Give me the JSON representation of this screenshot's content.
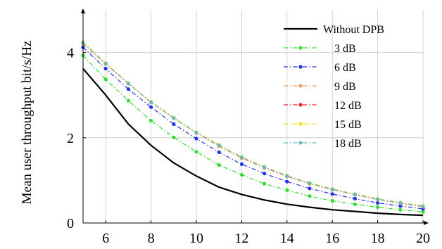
{
  "chart_data": {
    "type": "line",
    "title": "",
    "xlabel": "",
    "ylabel": "Mean user throughput bit/s/Hz",
    "xlim": [
      5,
      20
    ],
    "ylim": [
      0,
      5
    ],
    "x_ticks": [
      6,
      8,
      10,
      12,
      14,
      16,
      18,
      20
    ],
    "y_ticks": [
      0,
      2,
      4
    ],
    "grid": true,
    "legend_position": "top-right",
    "x": [
      5,
      6,
      7,
      8,
      9,
      10,
      11,
      12,
      13,
      14,
      15,
      16,
      17,
      18,
      19,
      20
    ],
    "series": [
      {
        "name": "Without DPB",
        "color": "#000000",
        "style": "solid",
        "markers": false,
        "values": [
          3.62,
          3.0,
          2.32,
          1.82,
          1.41,
          1.1,
          0.84,
          0.67,
          0.54,
          0.44,
          0.37,
          0.31,
          0.27,
          0.23,
          0.2,
          0.18
        ]
      },
      {
        "name": "3 dB",
        "color": "#33dd33",
        "style": "dashdot",
        "markers": true,
        "values": [
          3.93,
          3.37,
          2.87,
          2.4,
          2.01,
          1.67,
          1.36,
          1.13,
          0.92,
          0.77,
          0.63,
          0.52,
          0.44,
          0.37,
          0.31,
          0.26
        ]
      },
      {
        "name": "6 dB",
        "color": "#2233ee",
        "style": "dashdot",
        "markers": true,
        "values": [
          4.12,
          3.62,
          3.14,
          2.72,
          2.32,
          1.98,
          1.66,
          1.38,
          1.16,
          0.97,
          0.81,
          0.68,
          0.57,
          0.47,
          0.4,
          0.33
        ]
      },
      {
        "name": "9 dB",
        "color": "#e8a060",
        "style": "dashdot",
        "markers": true,
        "values": [
          4.2,
          3.73,
          3.27,
          2.83,
          2.46,
          2.11,
          1.8,
          1.52,
          1.29,
          1.09,
          0.92,
          0.78,
          0.66,
          0.55,
          0.46,
          0.38
        ]
      },
      {
        "name": "12 dB",
        "color": "#ee2222",
        "style": "dashdot",
        "markers": true,
        "values": [
          4.24,
          3.74,
          3.27,
          2.84,
          2.47,
          2.12,
          1.83,
          1.54,
          1.31,
          1.1,
          0.93,
          0.79,
          0.67,
          0.56,
          0.47,
          0.39
        ]
      },
      {
        "name": "15 dB",
        "color": "#f0e020",
        "style": "dashdot",
        "markers": true,
        "values": [
          4.24,
          3.75,
          3.28,
          2.84,
          2.47,
          2.13,
          1.83,
          1.55,
          1.32,
          1.11,
          0.94,
          0.8,
          0.68,
          0.57,
          0.48,
          0.4
        ]
      },
      {
        "name": "18 dB",
        "color": "#66bbbb",
        "style": "dashdot",
        "markers": true,
        "values": [
          4.23,
          3.74,
          3.27,
          2.83,
          2.46,
          2.12,
          1.82,
          1.54,
          1.31,
          1.1,
          0.93,
          0.79,
          0.67,
          0.56,
          0.47,
          0.39
        ]
      }
    ]
  }
}
